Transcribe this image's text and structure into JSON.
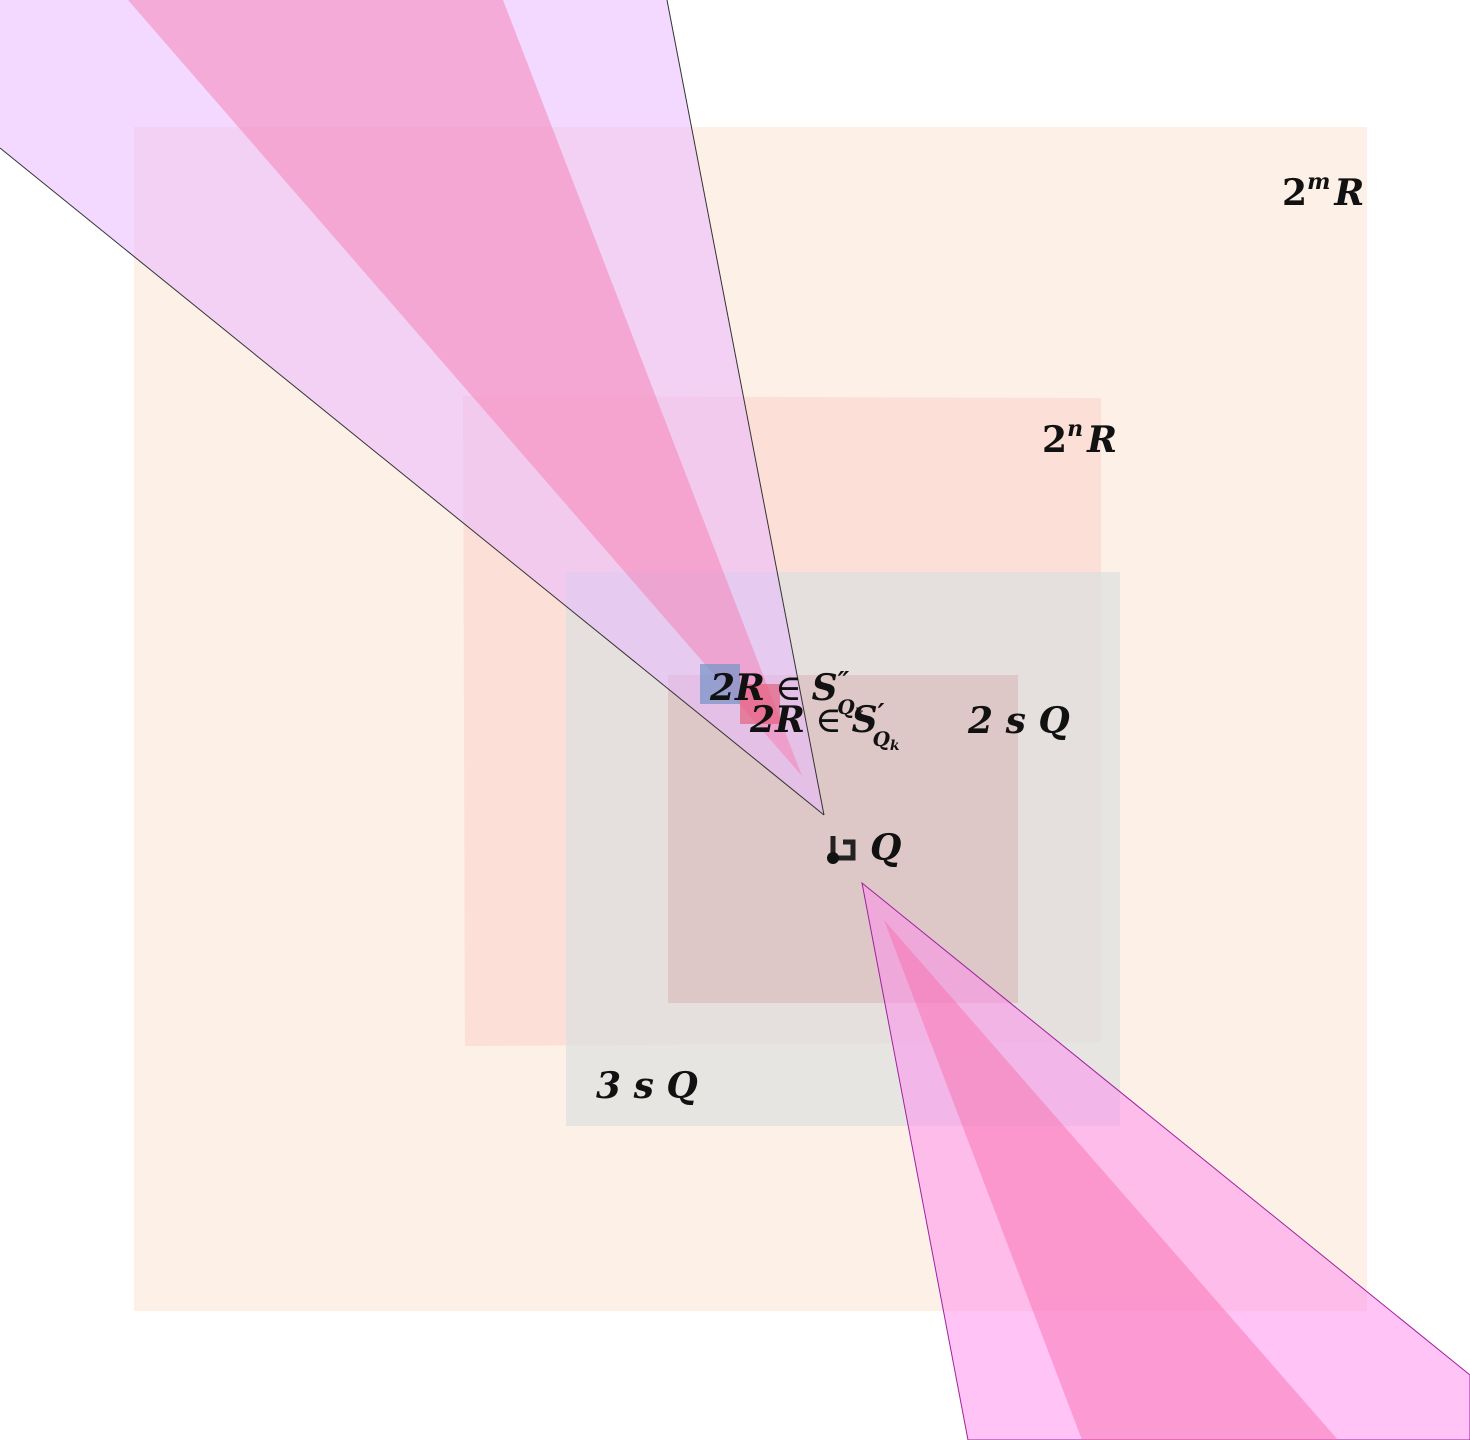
{
  "labels": {
    "outer_square": {
      "base": "2",
      "exponent": "m",
      "symbol": "R"
    },
    "mid_square": {
      "base": "2",
      "exponent": "n",
      "symbol": "R"
    },
    "two_s_q": "2 s Q",
    "three_s_q": "3 s Q",
    "q_label": "Q",
    "s_double_prime": {
      "lhs": "2R",
      "op": "∈",
      "set": "S",
      "prime": "″",
      "sub": "Q",
      "subsub": "k"
    },
    "s_prime": {
      "lhs": "2R",
      "op": "∈",
      "set": "S",
      "prime": "′",
      "sub": "Q",
      "subsub": "k"
    }
  },
  "colors": {
    "outer_square_fill": "#fdeee4",
    "mid_square_fill": "#fbdcd3",
    "big_gray_fill": "#dcdfe0",
    "inner_square_fill": "#d9b4b4",
    "small_blue_fill": "#7b96c9",
    "small_red_fill": "#e35b78",
    "upper_wide_cone_fill": "#e9b8ff",
    "upper_narrow_cone_fill": "#f57eb0",
    "lower_wide_cone_fill": "#ff88ee",
    "lower_narrow_cone_fill": "#f86aa8",
    "cone_stroke_dark": "#333333",
    "cone_stroke_magenta": "#a020a0",
    "q_marker": "#222222"
  }
}
